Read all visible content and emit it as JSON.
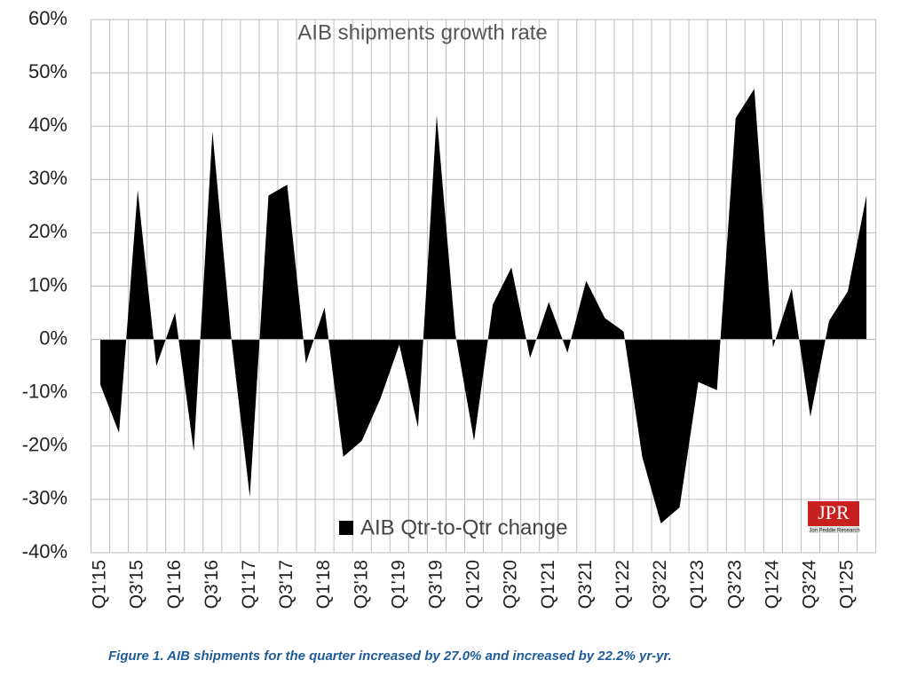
{
  "chart_data": {
    "type": "area",
    "title": "AIB shipments growth rate",
    "caption": "Figure 1. AIB shipments for the quarter increased by 27.0% and increased by 22.2% yr-yr.",
    "logo": {
      "text": "JPR",
      "subtitle": "Jon Peddie Research"
    },
    "categories": [
      "Q1'15",
      null,
      "Q3'15",
      null,
      "Q1'16",
      null,
      "Q3'16",
      null,
      "Q1'17",
      null,
      "Q3'17",
      null,
      "Q1'18",
      null,
      "Q3'18",
      null,
      "Q1'19",
      null,
      "Q3'19",
      null,
      "Q1'20",
      null,
      "Q3'20",
      null,
      "Q1'21",
      null,
      "Q3'21",
      null,
      "Q1'22",
      null,
      "Q3'22",
      null,
      "Q1'23",
      null,
      "Q3'23",
      null,
      "Q1'24",
      null,
      "Q3'24",
      null,
      "Q1'25",
      null
    ],
    "series": [
      {
        "name": "AIB Qtr-to-Qtr change",
        "color": "#000000",
        "values": [
          -8.5,
          -17.5,
          28,
          -5,
          5,
          -21,
          39,
          0.5,
          -29.5,
          27,
          29,
          -4.5,
          6,
          -22,
          -19,
          -11,
          -1,
          -16.5,
          42,
          1,
          -19,
          6.5,
          13.5,
          -3.5,
          7,
          -2.5,
          11,
          4,
          1.5,
          -22,
          -34.5,
          -31.5,
          -8,
          -9.5,
          41.5,
          47,
          -1.5,
          9.5,
          -14.5,
          3.5,
          9,
          27
        ]
      }
    ],
    "ylim": [
      -40,
      60
    ],
    "yticks": [
      {
        "value": -40,
        "label": "-40%"
      },
      {
        "value": -30,
        "label": "-30%"
      },
      {
        "value": -20,
        "label": "-20%"
      },
      {
        "value": -10,
        "label": "-10%"
      },
      {
        "value": 0,
        "label": "0%"
      },
      {
        "value": 10,
        "label": "10%"
      },
      {
        "value": 20,
        "label": "20%"
      },
      {
        "value": 30,
        "label": "30%"
      },
      {
        "value": 40,
        "label": "40%"
      },
      {
        "value": 50,
        "label": "50%"
      },
      {
        "value": 60,
        "label": "60%"
      }
    ],
    "grid": true
  }
}
